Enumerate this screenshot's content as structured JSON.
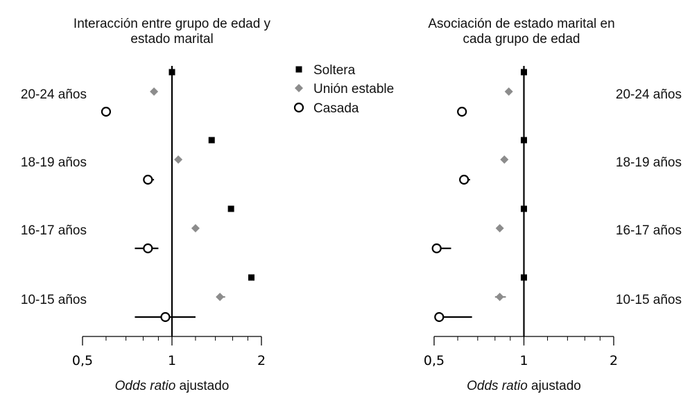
{
  "chart_data": [
    {
      "type": "forest",
      "title_lines": [
        "Interacción entre grupo de edad y",
        "estado marital"
      ],
      "xlabel_italic": "Odds ratio",
      "xlabel_rest": " ajustado",
      "x_scale": "log2",
      "xlim": [
        0.5,
        2
      ],
      "xticks": [
        0.5,
        1,
        2
      ],
      "xtick_labels": [
        "0,5",
        "1",
        "2"
      ],
      "reference_line": 1,
      "groups": [
        "20-24 años",
        "18-19 años",
        "16-17 años",
        "10-15 años"
      ],
      "series": [
        {
          "name": "Soltera",
          "values": [
            1.0,
            1.36,
            1.58,
            1.85
          ],
          "ci": [
            null,
            null,
            null,
            [
              1.81,
              1.89
            ]
          ]
        },
        {
          "name": "Unión estable",
          "values": [
            0.87,
            1.05,
            1.2,
            1.45
          ],
          "ci": [
            null,
            null,
            null,
            [
              1.41,
              1.51
            ]
          ]
        },
        {
          "name": "Casada",
          "values": [
            0.6,
            0.83,
            0.83,
            0.95
          ],
          "ci": [
            null,
            [
              0.8,
              0.87
            ],
            [
              0.75,
              0.9
            ],
            [
              0.75,
              1.2
            ]
          ]
        }
      ]
    },
    {
      "type": "forest",
      "title_lines": [
        "Asociación de estado marital en",
        "cada grupo de edad"
      ],
      "xlabel_italic": "Odds ratio",
      "xlabel_rest": " ajustado",
      "x_scale": "log2",
      "xlim": [
        0.5,
        2
      ],
      "xticks": [
        0.5,
        1,
        2
      ],
      "xtick_labels": [
        "0,5",
        "1",
        "2"
      ],
      "reference_line": 1,
      "groups": [
        "20-24 años",
        "18-19 años",
        "16-17 años",
        "10-15 años"
      ],
      "series": [
        {
          "name": "Soltera",
          "values": [
            1.0,
            1.0,
            1.0,
            1.0
          ],
          "ci": [
            null,
            null,
            null,
            null
          ]
        },
        {
          "name": "Unión estable",
          "values": [
            0.89,
            0.86,
            0.83,
            0.83
          ],
          "ci": [
            null,
            null,
            null,
            [
              0.8,
              0.87
            ]
          ]
        },
        {
          "name": "Casada",
          "values": [
            0.62,
            0.63,
            0.51,
            0.52
          ],
          "ci": [
            null,
            [
              0.61,
              0.66
            ],
            [
              0.51,
              0.57
            ],
            [
              0.51,
              0.67
            ]
          ]
        }
      ]
    }
  ],
  "legend": {
    "placement": "top-center",
    "entries": [
      {
        "label": "Soltera",
        "marker": "square",
        "color": "#000000"
      },
      {
        "label": "Unión estable",
        "marker": "diamond",
        "color": "#8c8c8c"
      },
      {
        "label": "Casada",
        "marker": "circle-open",
        "color": "#000000"
      }
    ]
  }
}
